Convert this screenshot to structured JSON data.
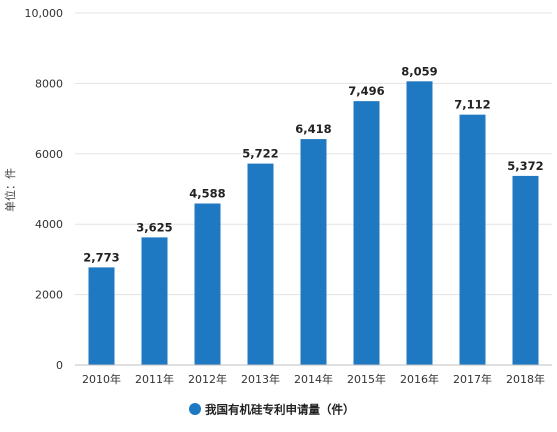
{
  "chart_data": {
    "type": "bar",
    "categories": [
      "2010年",
      "2011年",
      "2012年",
      "2013年",
      "2014年",
      "2015年",
      "2016年",
      "2017年",
      "2018年"
    ],
    "series": [
      {
        "name": "我国有机硅专利申请量（件）",
        "values": [
          2773,
          3625,
          4588,
          5722,
          6418,
          7496,
          8059,
          7112,
          5372
        ],
        "value_labels": [
          "2,773",
          "3,625",
          "4,588",
          "5,722",
          "6,418",
          "7,496",
          "8,059",
          "7,112",
          "5,372"
        ]
      }
    ],
    "ylabel": "单位：件",
    "ylim": [
      0,
      10000
    ],
    "yticks": [
      0,
      2000,
      4000,
      6000,
      8000,
      10000
    ],
    "ytick_labels": [
      "0",
      "2000",
      "4000",
      "6000",
      "8000",
      "10,000"
    ],
    "grid": true,
    "legend_position": "bottom-center",
    "colors": {
      "bar": "#1f78c2",
      "grid": "#e3e3e3",
      "axis": "#bfbfbf"
    }
  }
}
